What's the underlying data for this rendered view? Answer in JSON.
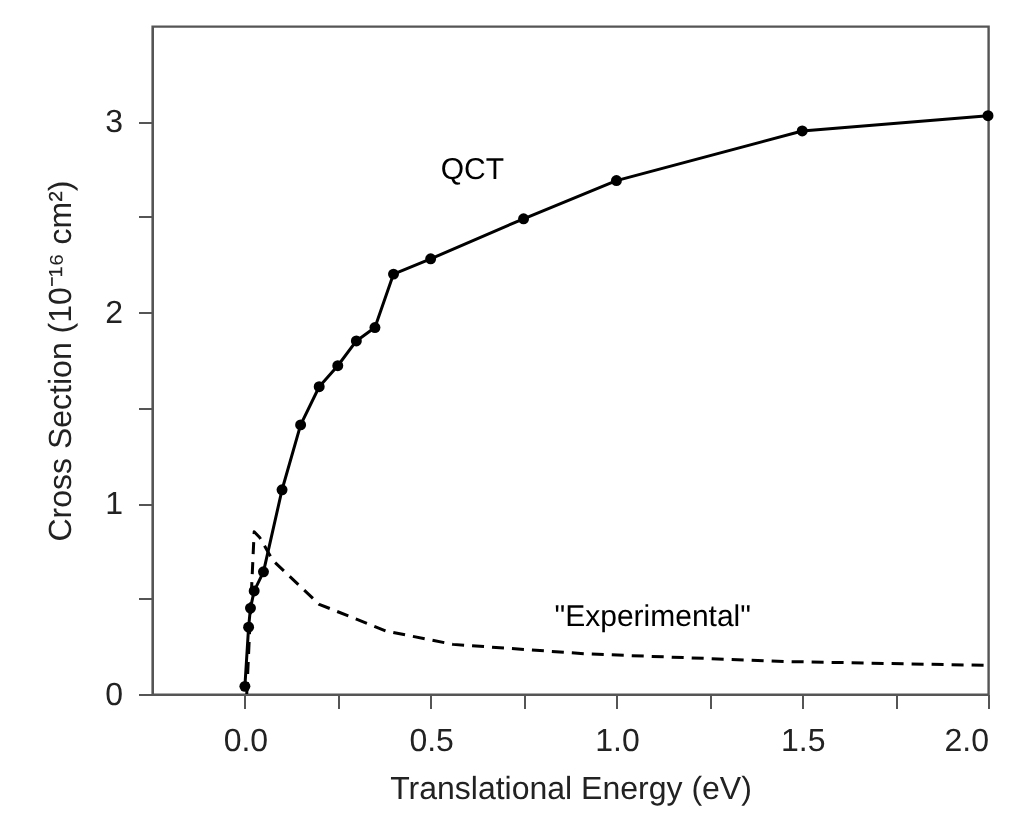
{
  "chart_data": {
    "type": "line",
    "xlabel": "Translational Energy (eV)",
    "ylabel": "Cross Section (10⁻¹⁶ cm²)",
    "xlim": [
      -0.25,
      2.0
    ],
    "ylim": [
      0,
      3.5
    ],
    "xticks": [
      {
        "value": 0,
        "label": "0.0"
      },
      {
        "value": 0.25,
        "label": null
      },
      {
        "value": 0.5,
        "label": "0.5"
      },
      {
        "value": 0.75,
        "label": null
      },
      {
        "value": 1,
        "label": "1.0"
      },
      {
        "value": 1.25,
        "label": null
      },
      {
        "value": 1.5,
        "label": "1.5"
      },
      {
        "value": 1.75,
        "label": null
      },
      {
        "value": 2,
        "label": "2.0"
      }
    ],
    "yticks": [
      0,
      {
        "value": 0.5,
        "label": null
      },
      1,
      {
        "value": 1.5,
        "label": null
      },
      2,
      {
        "value": 2.5,
        "label": null
      },
      3
    ],
    "grid": false,
    "series": [
      {
        "name": "QCT",
        "color": "#000000",
        "marker": "circle",
        "line_style": "solid",
        "x": [
          0.0,
          0.01,
          0.015,
          0.025,
          0.05,
          0.1,
          0.15,
          0.2,
          0.25,
          0.3,
          0.35,
          0.4,
          0.5,
          0.75,
          1.0,
          1.5,
          2.0
        ],
        "values": [
          0.04,
          0.35,
          0.45,
          0.54,
          0.64,
          1.07,
          1.41,
          1.61,
          1.72,
          1.85,
          1.92,
          2.2,
          2.28,
          2.49,
          2.69,
          2.95,
          3.03
        ]
      },
      {
        "name": "\"Experimental\"",
        "color": "#000000",
        "marker": "none",
        "line_style": "dashed",
        "x": [
          0.005,
          0.025,
          0.04,
          0.075,
          0.2,
          0.38,
          0.56,
          0.92,
          1.46,
          2.0
        ],
        "values": [
          0.0,
          0.85,
          0.82,
          0.7,
          0.47,
          0.33,
          0.26,
          0.21,
          0.17,
          0.15
        ]
      }
    ]
  }
}
